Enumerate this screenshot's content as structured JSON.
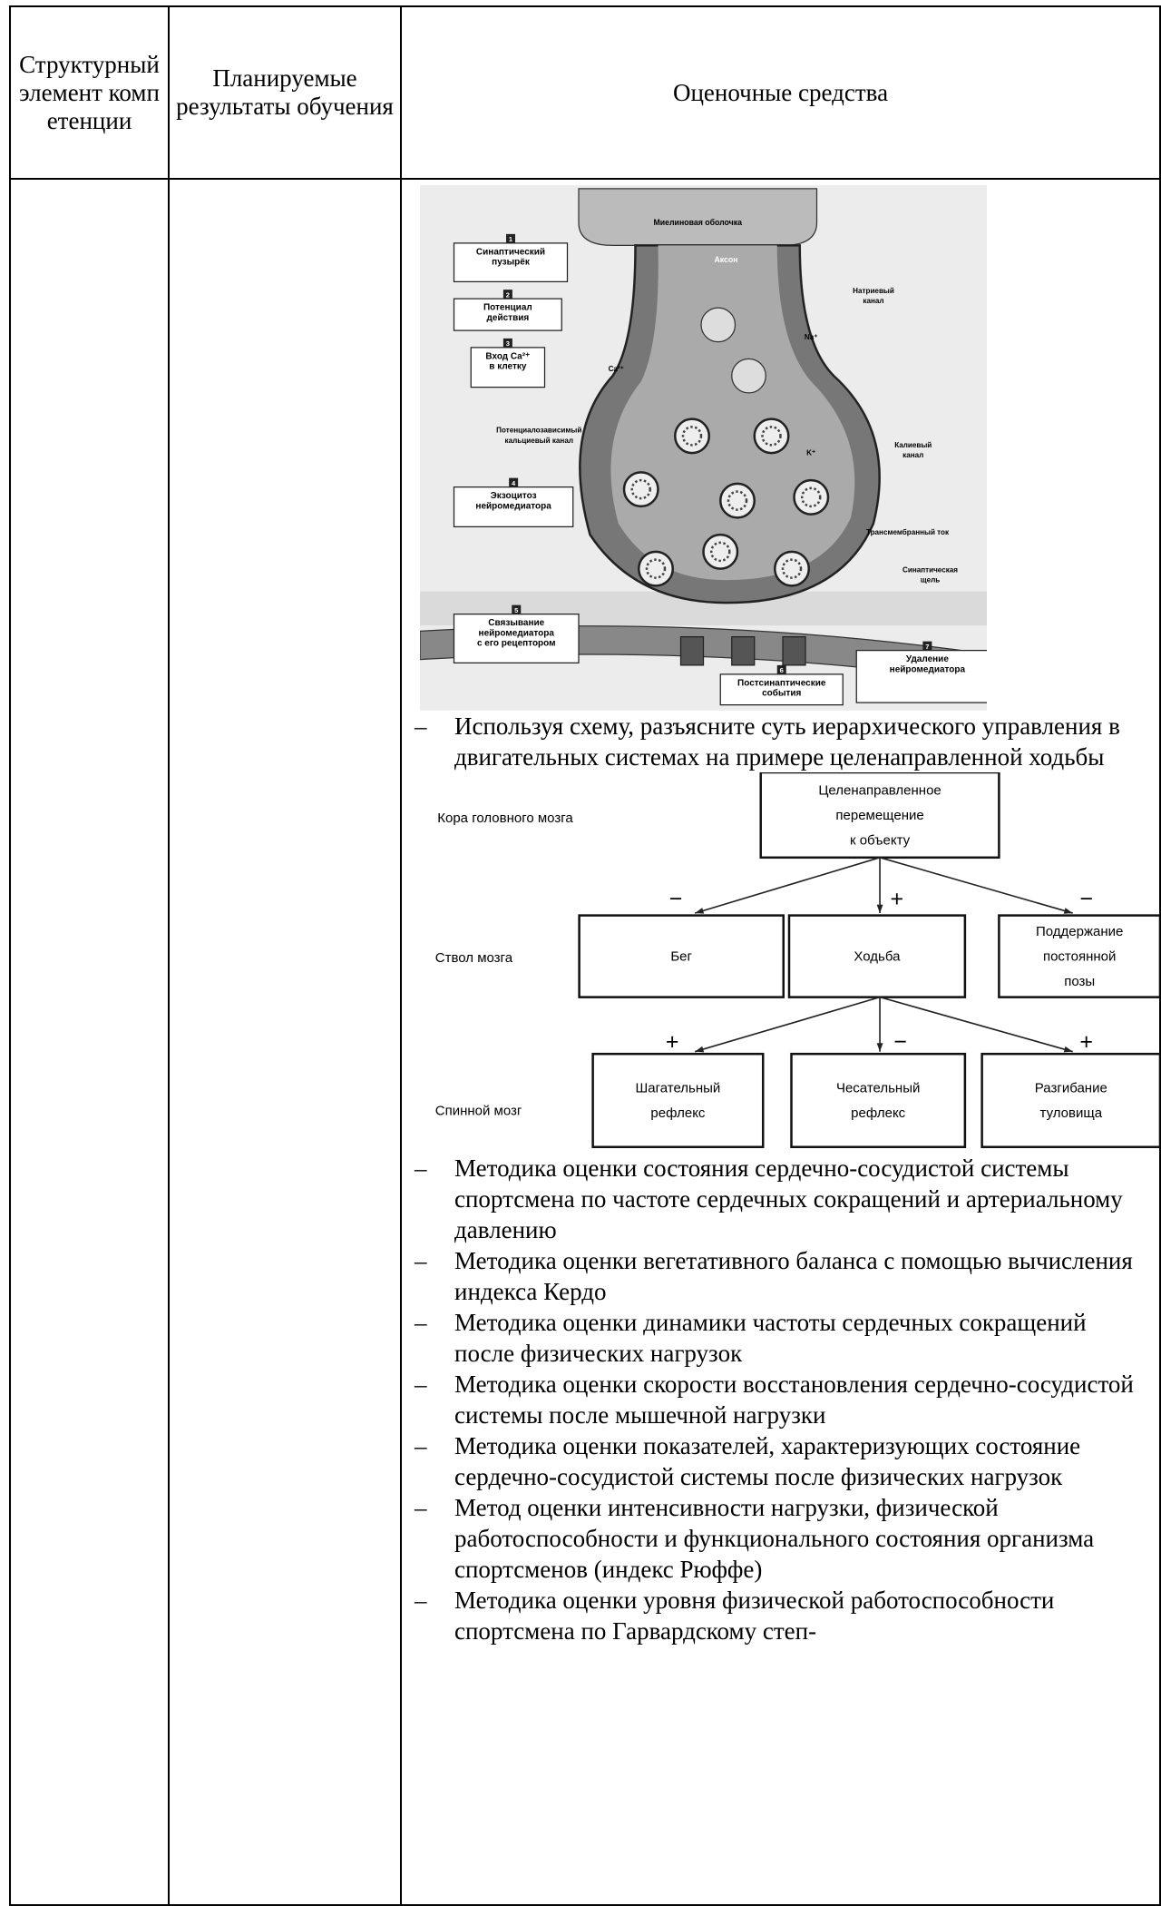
{
  "table": {
    "header": [
      "Структурный элемент компетенции",
      "Планируемые результаты обучения",
      "Оценочные средства"
    ],
    "synapse_figure": {
      "myelin": "Миелиновая оболочка",
      "axon": "Аксон",
      "boxes": [
        {
          "number": "1",
          "lines": [
            "Синаптический",
            "пузырёк"
          ]
        },
        {
          "number": "2",
          "lines": [
            "Потенциал",
            "действия"
          ]
        },
        {
          "number": "3",
          "lines": [
            "Вход Ca²⁺",
            "в клетку"
          ]
        },
        {
          "number": "4",
          "lines": [
            "Экзоцитоз",
            "нейромедиатора"
          ]
        },
        {
          "number": "5",
          "lines": [
            "Связывание",
            "нейромедиатора",
            "с его рецептором"
          ]
        },
        {
          "number": "6",
          "lines": [
            "Постсинаптические",
            "события"
          ]
        },
        {
          "number": "7",
          "lines": [
            "Удаление",
            "нейромедиатора"
          ]
        }
      ],
      "labels": [
        {
          "lines": [
            "Натриевый",
            "канал"
          ]
        },
        {
          "lines": [
            "Na⁺"
          ]
        },
        {
          "lines": [
            "Ca²⁺"
          ]
        },
        {
          "lines": [
            "Потенциалозависимый",
            "кальциевый канал"
          ]
        },
        {
          "lines": [
            "K⁺"
          ]
        },
        {
          "lines": [
            "Калиевый",
            "канал"
          ]
        },
        {
          "lines": [
            "Трансмембранный ток"
          ]
        },
        {
          "lines": [
            "Синаптическая",
            "щель"
          ]
        }
      ]
    },
    "bullets_before": [
      {
        "marker": "–",
        "text": "Используя схему, разъясните суть иерархического управления в двигательных системах на примере целенаправленной ходьбы"
      }
    ],
    "hierarchy_figure": {
      "levels": [
        "Кора головного мозга",
        "Ствол мозга",
        "Спинной мозг"
      ],
      "nodes": [
        {
          "lines": [
            "Целенаправленное",
            "перемещение",
            "к объекту"
          ]
        },
        {
          "lines": [
            "Бег"
          ]
        },
        {
          "lines": [
            "Ходьба"
          ]
        },
        {
          "lines": [
            "Поддержание",
            "постоянной",
            "позы"
          ]
        },
        {
          "lines": [
            "Шагательный",
            "рефлекс"
          ]
        },
        {
          "lines": [
            "Чесательный",
            "рефлекс"
          ]
        },
        {
          "lines": [
            "Разгибание",
            "туловища"
          ]
        }
      ],
      "signs": [
        "−",
        "+",
        "−",
        "+",
        "−",
        "+"
      ]
    },
    "bullets_after": [
      {
        "marker": "–",
        "text": "Методика оценки состояния сердечно-сосудистой системы спортсмена по частоте сердечных сокращений и артериальному давлению"
      },
      {
        "marker": "–",
        "text": "Методика оценки вегетативного баланса с помощью вычисления индекса Кердо"
      },
      {
        "marker": "–",
        "text": "Методика оценки динамики частоты сердечных сокращений после физических нагрузок"
      },
      {
        "marker": "–",
        "text": "Методика оценки скорости восстановления сердечно-сосудистой системы после мышечной нагрузки"
      },
      {
        "marker": "–",
        "text": "Методика оценки показателей, характеризующих состояние сердечно-сосудистой системы после физических нагрузок"
      },
      {
        "marker": "–",
        "text": "Метод оценки интенсивности нагрузки, физической работоспособности и функционального состояния организма спортсменов (индекс Рюффе)"
      },
      {
        "marker": "–",
        "text": "Методика оценки уровня физической работоспособности спортсмена по Гарвардскому степ-"
      }
    ]
  }
}
